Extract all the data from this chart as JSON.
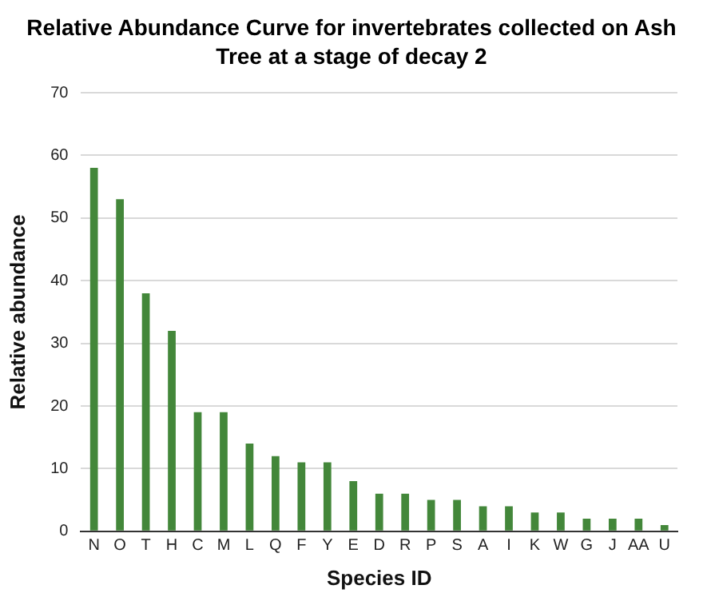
{
  "chart_data": {
    "type": "bar",
    "title": "Relative Abundance Curve for invertebrates collected on Ash Tree at a stage of decay 2",
    "xlabel": "Species ID",
    "ylabel": "Relative abundance",
    "categories": [
      "N",
      "O",
      "T",
      "H",
      "C",
      "M",
      "L",
      "Q",
      "F",
      "Y",
      "E",
      "D",
      "R",
      "P",
      "S",
      "A",
      "I",
      "K",
      "W",
      "G",
      "J",
      "AA",
      "U"
    ],
    "values": [
      58,
      53,
      38,
      32,
      19,
      19,
      14,
      12,
      11,
      11,
      8,
      6,
      6,
      5,
      5,
      4,
      4,
      3,
      3,
      2,
      2,
      2,
      1
    ],
    "color": "#43873a",
    "ylim": [
      0,
      70
    ],
    "yticks": [
      0,
      10,
      20,
      30,
      40,
      50,
      60,
      70
    ],
    "grid": "y"
  }
}
